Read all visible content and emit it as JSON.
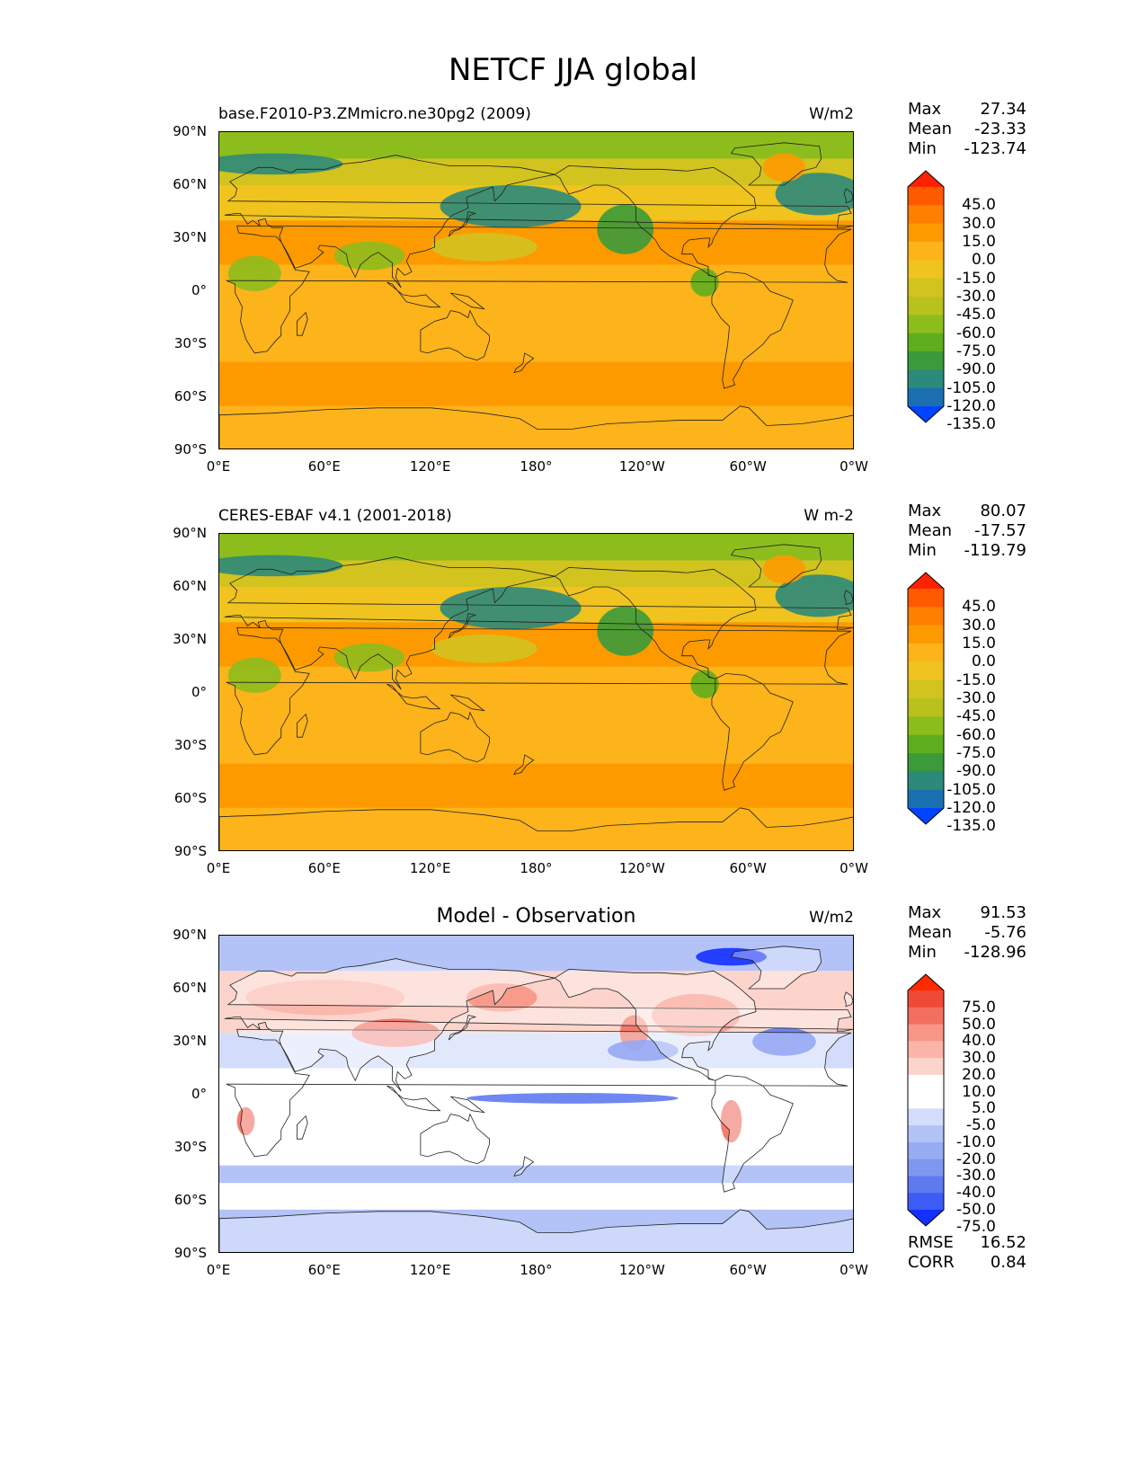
{
  "title": "NETCF JJA global",
  "lat_labels": [
    "90°N",
    "60°N",
    "30°N",
    "0°",
    "30°S",
    "60°S",
    "90°S"
  ],
  "lon_labels": [
    "0°E",
    "60°E",
    "120°E",
    "180°",
    "120°W",
    "60°W",
    "0°W"
  ],
  "panels": [
    {
      "name": "model",
      "title": "base.F2010-P3.ZMmicro.ne30pg2 (2009)",
      "units": "W/m2",
      "stats": [
        {
          "k": "Max",
          "v": "27.34"
        },
        {
          "k": "Mean",
          "v": "-23.33"
        },
        {
          "k": "Min",
          "v": "-123.74"
        }
      ],
      "colorbar_labels": [
        "45.0",
        "30.0",
        "15.0",
        "0.0",
        "-15.0",
        "-30.0",
        "-45.0",
        "-60.0",
        "-75.0",
        "-90.0",
        "-105.0",
        "-120.0",
        "-135.0"
      ]
    },
    {
      "name": "obs",
      "title": "CERES-EBAF v4.1 (2001-2018)",
      "units": "W m-2",
      "stats": [
        {
          "k": "Max",
          "v": "80.07"
        },
        {
          "k": "Mean",
          "v": "-17.57"
        },
        {
          "k": "Min",
          "v": "-119.79"
        }
      ],
      "colorbar_labels": [
        "45.0",
        "30.0",
        "15.0",
        "0.0",
        "-15.0",
        "-30.0",
        "-45.0",
        "-60.0",
        "-75.0",
        "-90.0",
        "-105.0",
        "-120.0",
        "-135.0"
      ]
    },
    {
      "name": "diff",
      "title": "Model - Observation",
      "units": "W/m2",
      "stats": [
        {
          "k": "Max",
          "v": "91.53"
        },
        {
          "k": "Mean",
          "v": "-5.76"
        },
        {
          "k": "Min",
          "v": "-128.96"
        }
      ],
      "colorbar_labels": [
        "75.0",
        "50.0",
        "40.0",
        "30.0",
        "20.0",
        "10.0",
        "5.0",
        "-5.0",
        "-10.0",
        "-20.0",
        "-30.0",
        "-40.0",
        "-50.0",
        "-75.0"
      ],
      "extra_stats": [
        {
          "k": "RMSE",
          "v": "16.52"
        },
        {
          "k": "CORR",
          "v": "0.84"
        }
      ]
    }
  ],
  "colors": {
    "cf_ramp": [
      "#ff2200",
      "#ff5a00",
      "#ff7f00",
      "#fd9a00",
      "#fdb31a",
      "#f0c31e",
      "#d2c31f",
      "#b9c21c",
      "#8dbd1c",
      "#5fae1e",
      "#3b9a3a",
      "#2c8a7a",
      "#1a6fb0",
      "#0044ff"
    ],
    "diff_ramp": [
      "#ff2a00",
      "#ef4a35",
      "#f26f60",
      "#f79586",
      "#fab5a8",
      "#fcd4cb",
      "#ffffff",
      "#ffffff",
      "#d3dcfa",
      "#b3c3f7",
      "#97acf3",
      "#7f97f0",
      "#5f7af0",
      "#3d5bf5",
      "#1430ff"
    ]
  }
}
